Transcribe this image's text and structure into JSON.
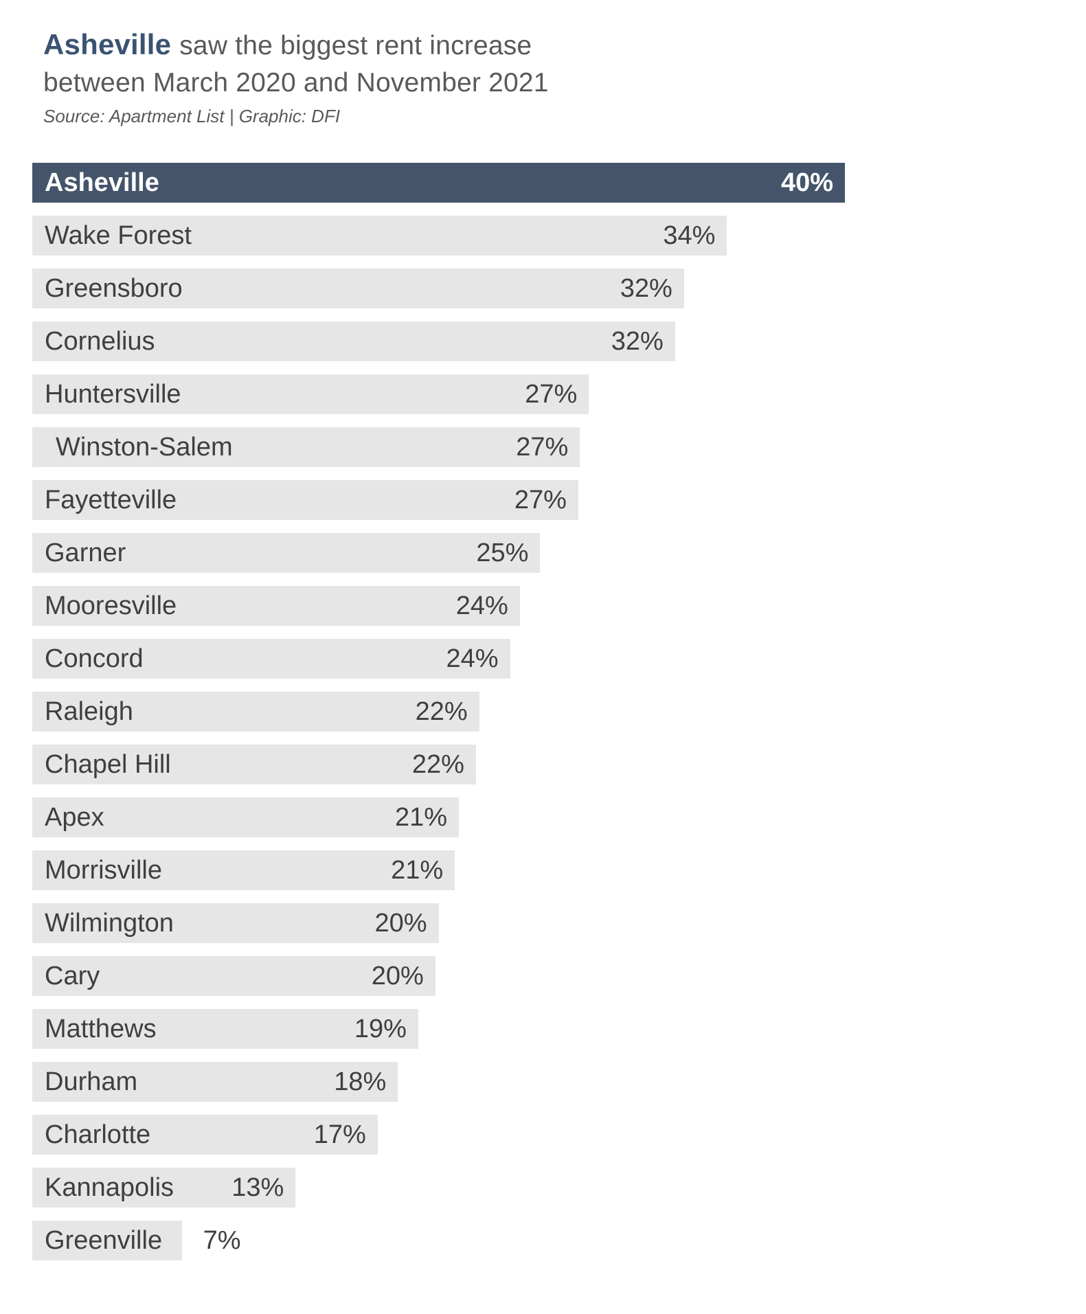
{
  "header": {
    "title_highlight": "Asheville",
    "title_rest_line1": "saw the biggest rent increase",
    "title_line2": "between March 2020 and November 2021",
    "source": "Source: Apartment List | Graphic: DFI"
  },
  "colors": {
    "highlight_bar": "#44546a",
    "default_bar": "#e6e6e6",
    "highlight_text": "#ffffff",
    "label_text": "#3f3f3f",
    "title_highlight_text": "#3a5373",
    "title_text": "#595959",
    "background": "#ffffff"
  },
  "chart_data": {
    "type": "bar",
    "orientation": "horizontal",
    "title": "Asheville saw the biggest rent increase between March 2020 and November 2021",
    "subtitle": "",
    "source": "Source: Apartment List | Graphic: DFI",
    "xlabel": "",
    "ylabel": "",
    "unit": "%",
    "xlim": [
      0,
      40
    ],
    "grid": false,
    "legend": false,
    "value_labels": "inside-end, except Greenville which is outside-end",
    "categories": [
      "Asheville",
      "Wake Forest",
      "Greensboro",
      "Cornelius",
      "Huntersville",
      "Winston-Salem",
      "Fayetteville",
      "Garner",
      "Mooresville",
      "Concord",
      "Raleigh",
      "Chapel Hill",
      "Apex",
      "Morrisville",
      "Wilmington",
      "Cary",
      "Matthews",
      "Durham",
      "Charlotte",
      "Kannapolis",
      "Greenville"
    ],
    "values": [
      40,
      34,
      32,
      32,
      27,
      27,
      27,
      25,
      24,
      24,
      22,
      22,
      21,
      21,
      20,
      20,
      19,
      18,
      17,
      13,
      7
    ],
    "rows": [
      {
        "city": "Asheville",
        "value": 40,
        "label": "40%",
        "width_pct": 100,
        "highlight": true
      },
      {
        "city": "Wake Forest",
        "value": 34,
        "label": "34%",
        "width_pct": 85.5
      },
      {
        "city": "Greensboro",
        "value": 32,
        "label": "32%",
        "width_pct": 80.2
      },
      {
        "city": "Cornelius",
        "value": 32,
        "label": "32%",
        "width_pct": 79.1
      },
      {
        "city": "Huntersville",
        "value": 27,
        "label": "27%",
        "width_pct": 68.5
      },
      {
        "city": "Winston-Salem",
        "value": 27,
        "label": "27%",
        "width_pct": 67.4,
        "indent": true
      },
      {
        "city": "Fayetteville",
        "value": 27,
        "label": "27%",
        "width_pct": 67.2
      },
      {
        "city": "Garner",
        "value": 25,
        "label": "25%",
        "width_pct": 62.5
      },
      {
        "city": "Mooresville",
        "value": 24,
        "label": "24%",
        "width_pct": 60.0
      },
      {
        "city": "Concord",
        "value": 24,
        "label": "24%",
        "width_pct": 58.8
      },
      {
        "city": "Raleigh",
        "value": 22,
        "label": "22%",
        "width_pct": 55.0
      },
      {
        "city": "Chapel Hill",
        "value": 22,
        "label": "22%",
        "width_pct": 54.6
      },
      {
        "city": "Apex",
        "value": 21,
        "label": "21%",
        "width_pct": 52.5
      },
      {
        "city": "Morrisville",
        "value": 21,
        "label": "21%",
        "width_pct": 52.0
      },
      {
        "city": "Wilmington",
        "value": 20,
        "label": "20%",
        "width_pct": 50.0
      },
      {
        "city": "Cary",
        "value": 20,
        "label": "20%",
        "width_pct": 49.6
      },
      {
        "city": "Matthews",
        "value": 19,
        "label": "19%",
        "width_pct": 47.5
      },
      {
        "city": "Durham",
        "value": 18,
        "label": "18%",
        "width_pct": 45.0
      },
      {
        "city": "Charlotte",
        "value": 17,
        "label": "17%",
        "width_pct": 42.5
      },
      {
        "city": "Kannapolis",
        "value": 13,
        "label": "13%",
        "width_pct": 32.4
      },
      {
        "city": "Greenville",
        "value": 7,
        "label": "7%",
        "width_pct": 18.4,
        "value_outside": true
      }
    ]
  }
}
